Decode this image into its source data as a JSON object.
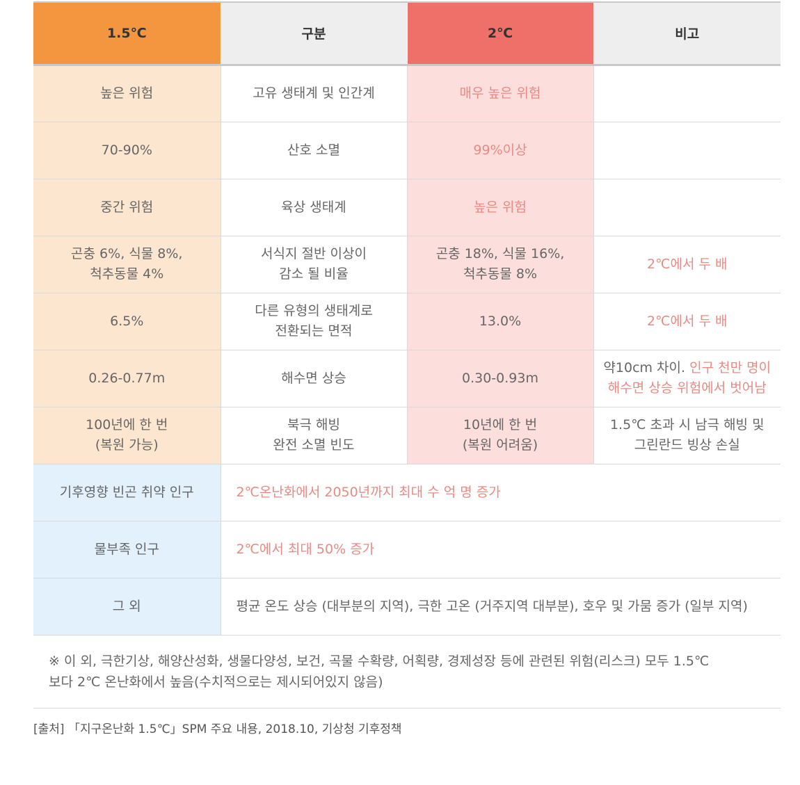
{
  "header": {
    "col1": "1.5℃",
    "col2": "구분",
    "col3": "2℃",
    "col4": "비고"
  },
  "colors": {
    "header_15": "#f3963f",
    "header_2": "#ef7069",
    "header_neutral": "#eeeeee",
    "cell_15": "#fde6d0",
    "cell_2": "#fcdfdd",
    "cell_blue": "#e2f1fb",
    "highlight_text": "#e88a84"
  },
  "rows": [
    {
      "c15": "높은 위험",
      "gubun": "고유 생태계 및 인간계",
      "c2": "매우 높은 위험",
      "bigo": ""
    },
    {
      "c15": "70-90%",
      "gubun": "산호 소멸",
      "c2": "99%이상",
      "bigo": ""
    },
    {
      "c15": "중간 위험",
      "gubun": "육상 생태계",
      "c2": "높은 위험",
      "bigo": ""
    },
    {
      "c15_l1": "곤충 6%, 식물 8%,",
      "c15_l2": "척추동물 4%",
      "gubun_l1": "서식지 절반 이상이",
      "gubun_l2": "감소 될 비율",
      "c2_l1": "곤충 18%, 식물 16%,",
      "c2_l2": "척추동물 8%",
      "bigo": "2℃에서 두 배"
    },
    {
      "c15": "6.5%",
      "gubun_l1": "다른 유형의 생태계로",
      "gubun_l2": "전환되는 면적",
      "c2": "13.0%",
      "bigo": "2℃에서 두 배"
    },
    {
      "c15": "0.26-0.77m",
      "gubun": "해수면 상승",
      "c2": "0.30-0.93m",
      "bigo_l1_a": "약10cm 차이. ",
      "bigo_l1_b": "인구 천만 명이",
      "bigo_l2": "해수면 상승 위험에서 벗어남"
    },
    {
      "c15_l1": "100년에 한 번",
      "c15_l2": "(복원 가능)",
      "gubun_l1": "북극 해빙",
      "gubun_l2": "완전 소멸 빈도",
      "c2_l1": "10년에 한 번",
      "c2_l2": "(복원 어려움)",
      "bigo_l1": "1.5℃ 초과 시 남극 해빙 및",
      "bigo_l2": "그린란드 빙상 손실"
    }
  ],
  "wide_rows": [
    {
      "label": "기후영향 빈곤 취약 인구",
      "text": "2℃온난화에서 2050년까지 최대 수 억 명 증가"
    },
    {
      "label": "물부족 인구",
      "text": "2℃에서 최대 50% 증가"
    },
    {
      "label": "그 외",
      "text": "평균 온도 상승 (대부분의 지역), 극한 고온 (거주지역 대부분), 호우 및 가뭄 증가 (일부 지역)"
    }
  ],
  "note": {
    "line1": "※ 이 외, 극한기상, 해양산성화, 생물다양성, 보건, 곡물 수확량, 어획량, 경제성장 등에 관련된 위험(리스크) 모두 1.5℃",
    "line2": "보다 2℃ 온난화에서 높음(수치적으로는 제시되어있지 않음)"
  },
  "source": "[출처] 「지구온난화 1.5℃」SPM 주요 내용, 2018.10, 기상청 기후정책"
}
